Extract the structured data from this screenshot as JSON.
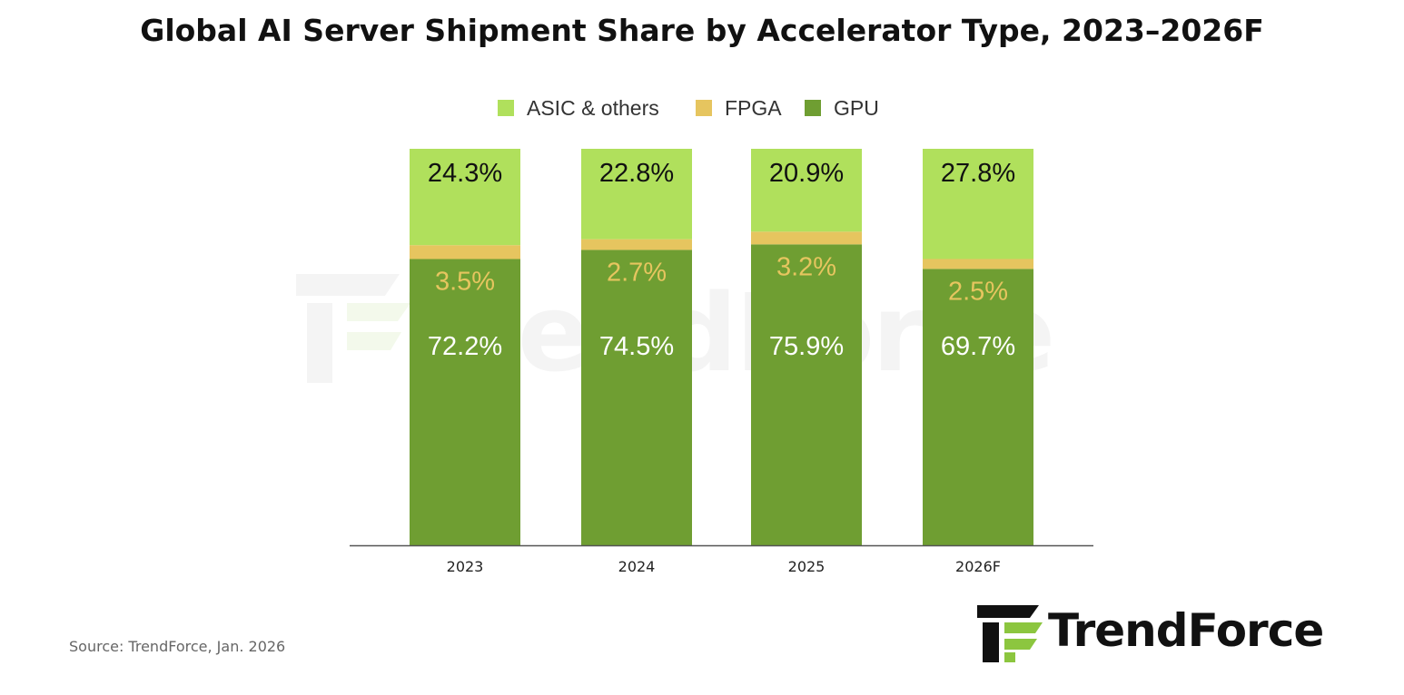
{
  "chart_data": {
    "type": "bar",
    "stacked": true,
    "title": "Global AI Server Shipment Share by Accelerator Type, 2023–2026F",
    "categories": [
      "2023",
      "2024",
      "2025",
      "2026F"
    ],
    "series": [
      {
        "name": "GPU",
        "color": "#6f9e32",
        "label_color": "#ffffff",
        "values": [
          72.2,
          74.5,
          75.9,
          69.7
        ],
        "labels": [
          "72.2%",
          "74.5%",
          "75.9%",
          "69.7%"
        ]
      },
      {
        "name": "FPGA",
        "color": "#e6c55f",
        "label_color": "#e6c55f",
        "values": [
          3.5,
          2.7,
          3.2,
          2.5
        ],
        "labels": [
          "3.5%",
          "2.7%",
          "3.2%",
          "2.5%"
        ]
      },
      {
        "name": "ASIC & others",
        "color": "#b0e05c",
        "label_color": "#111111",
        "values": [
          24.3,
          22.8,
          20.9,
          27.8
        ],
        "labels": [
          "24.3%",
          "22.8%",
          "20.9%",
          "27.8%"
        ]
      }
    ],
    "legend": {
      "placement": "top-center",
      "order": [
        "ASIC & others",
        "FPGA",
        "GPU"
      ]
    },
    "ylim": [
      0,
      100
    ],
    "xlabel": "",
    "ylabel": "",
    "grid": false
  },
  "footer": {
    "source": "Source: TrendForce, Jan. 2026",
    "brand": "TrendForce"
  },
  "watermark": {
    "text": "TrendForce"
  },
  "colors": {
    "axis": "#555555",
    "logo_dark": "#111111",
    "logo_accent": "#8cc63f"
  }
}
